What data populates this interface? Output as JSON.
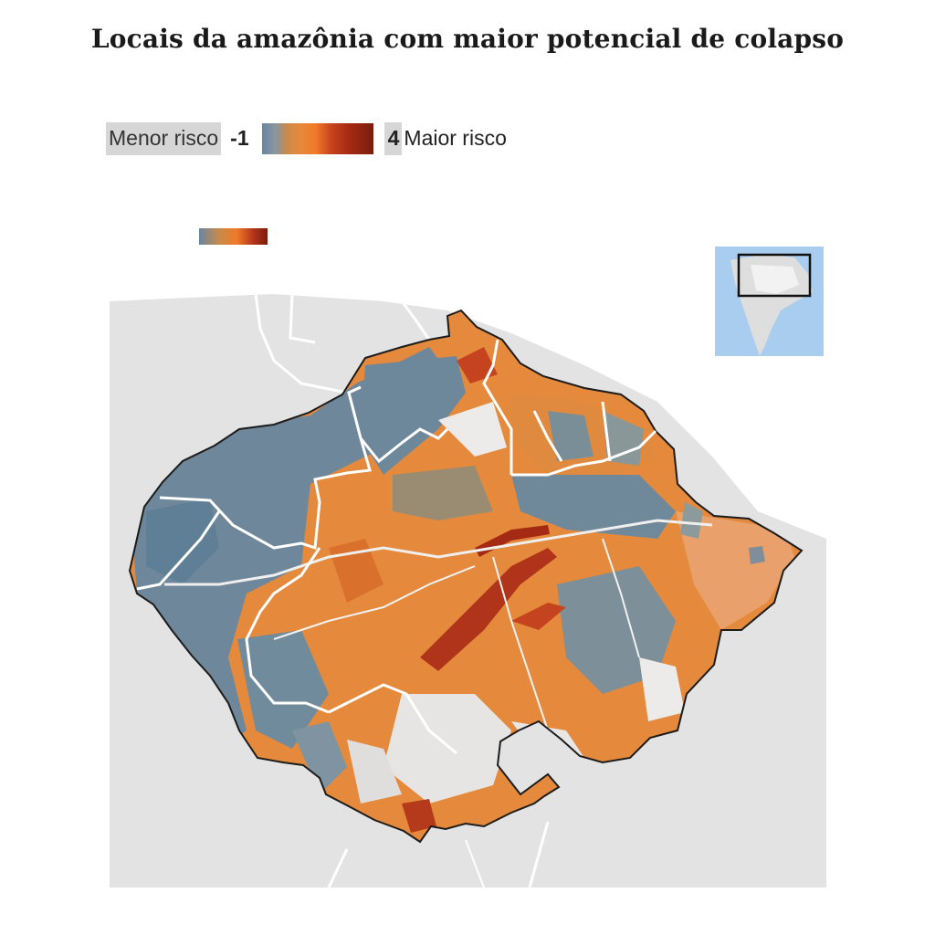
{
  "title": "Locais da amazônia com maior potencial de colapso",
  "legend": {
    "low_label": "Menor risco",
    "low_value": "-1",
    "high_value": "4",
    "high_label": "Maior risco"
  },
  "colors": {
    "low": "#6a86a0",
    "mid": "#e8893a",
    "high": "#7a1c0c",
    "land": "#e3e3e3",
    "ocean": "#ffffff",
    "inset_ocean": "#a9cdee"
  },
  "icons": [
    "locator-inset-map"
  ]
}
